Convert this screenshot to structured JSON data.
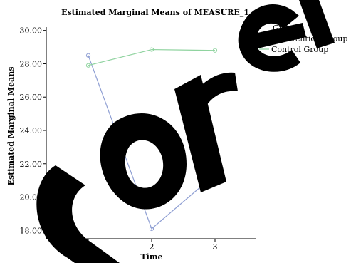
{
  "chart_data": {
    "type": "line",
    "title": "Estimated Marginal Means of MEASURE_1",
    "xlabel": "Time",
    "ylabel": "Estimated Marginal Means",
    "categories": [
      "1",
      "2",
      "3"
    ],
    "y_ticks": [
      "18.00",
      "20.00",
      "22.00",
      "24.00",
      "26.00",
      "28.00",
      "30.00"
    ],
    "ylim": [
      17.5,
      30.2
    ],
    "legend_title": "Group",
    "legend_position": "top-right",
    "grid": false,
    "series": [
      {
        "name": "Intervention Group",
        "color": "#8f9fd3",
        "values": [
          28.5,
          18.1,
          21.35
        ]
      },
      {
        "name": "Control Group",
        "color": "#8fd39f",
        "values": [
          27.9,
          28.85,
          28.8
        ]
      }
    ],
    "watermark": "Corrected"
  }
}
